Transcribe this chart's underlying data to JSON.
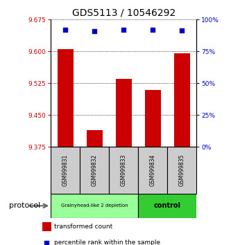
{
  "title": "GDS5113 / 10546292",
  "samples": [
    "GSM999831",
    "GSM999832",
    "GSM999833",
    "GSM999834",
    "GSM999835"
  ],
  "bar_values": [
    9.605,
    9.415,
    9.535,
    9.51,
    9.595
  ],
  "bar_bottom": 9.375,
  "percentile_values": [
    92,
    91,
    92,
    92,
    91.5
  ],
  "ylim_left": [
    9.375,
    9.675
  ],
  "ylim_right": [
    0,
    100
  ],
  "yticks_left": [
    9.375,
    9.45,
    9.525,
    9.6,
    9.675
  ],
  "yticks_right": [
    0,
    25,
    50,
    75,
    100
  ],
  "bar_color": "#CC0000",
  "dot_color": "#0000CC",
  "group1_indices": [
    0,
    1,
    2
  ],
  "group2_indices": [
    3,
    4
  ],
  "group1_label": "Grainyhead-like 2 depletion",
  "group2_label": "control",
  "group1_color": "#99FF99",
  "group2_color": "#33CC33",
  "sample_box_color": "#CCCCCC",
  "protocol_label": "protocol",
  "legend_bar_label": "transformed count",
  "legend_dot_label": "percentile rank within the sample",
  "title_fontsize": 10,
  "tick_fontsize": 6.5,
  "sample_fontsize": 5.5,
  "group_fontsize_small": 5,
  "group_fontsize_large": 7,
  "legend_fontsize": 6.5,
  "protocol_fontsize": 8
}
